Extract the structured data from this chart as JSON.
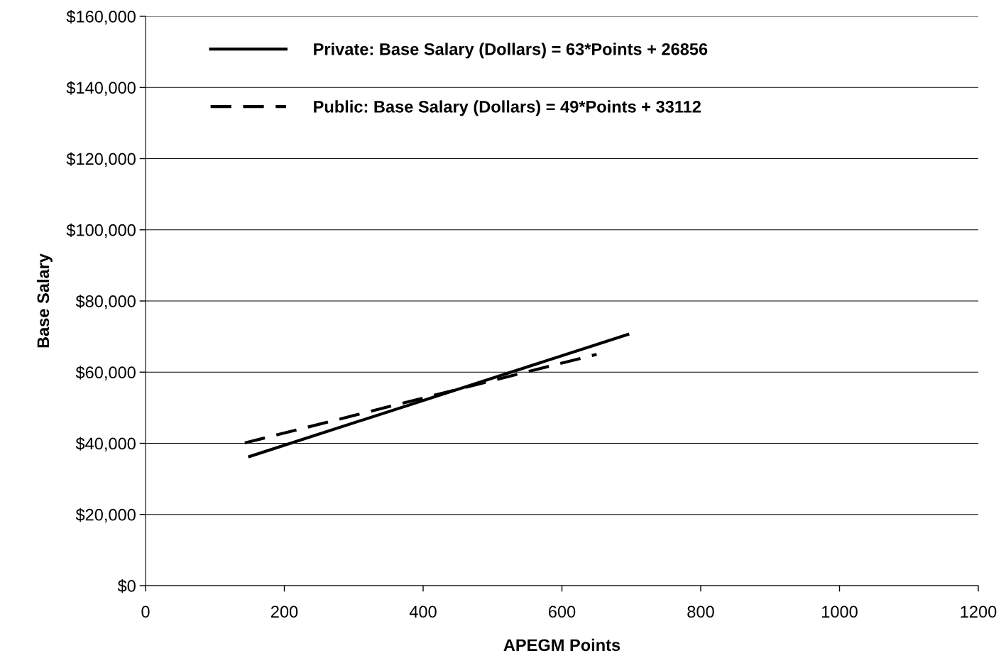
{
  "chart_data": {
    "type": "line",
    "xlabel": "APEGM Points",
    "ylabel": "Base Salary",
    "series": [
      {
        "name": "Private: Base Salary (Dollars) = 63*Points + 26856",
        "color": "#000000",
        "line_style": "solid",
        "x": [
          150,
          695
        ],
        "values": [
          36300,
          70600
        ]
      },
      {
        "name": "Public: Base Salary (Dollars) = 49*Points + 33112",
        "color": "#000000",
        "line_style": "dashed",
        "x": [
          143,
          650
        ],
        "values": [
          40100,
          65000
        ]
      }
    ],
    "xlim": [
      0,
      1200
    ],
    "xticks": [
      0,
      200,
      400,
      600,
      800,
      1000,
      1200
    ],
    "ylim": [
      0,
      160000
    ],
    "yticks": [
      {
        "value": 0,
        "label": "$0"
      },
      {
        "value": 20000,
        "label": "$20,000"
      },
      {
        "value": 40000,
        "label": "$40,000"
      },
      {
        "value": 60000,
        "label": "$60,000"
      },
      {
        "value": 80000,
        "label": "$80,000"
      },
      {
        "value": 100000,
        "label": "$100,000"
      },
      {
        "value": 120000,
        "label": "$120,000"
      },
      {
        "value": 140000,
        "label": "$140,000"
      },
      {
        "value": 160000,
        "label": "$160,000"
      }
    ],
    "grid": "y",
    "legend": "top left"
  }
}
